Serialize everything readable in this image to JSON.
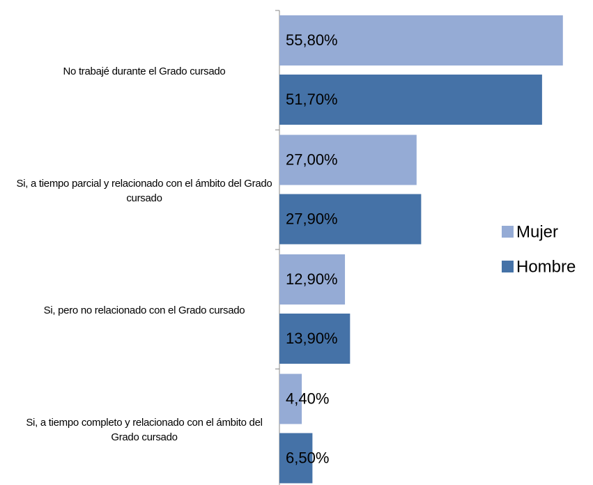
{
  "chart_data": {
    "type": "bar",
    "orientation": "horizontal",
    "categories": [
      "No trabajé  durante el Grado cursado",
      "Si, a tiempo parcial y relacionado con el ámbito del Grado cursado",
      "Si, pero no relacionado con el Grado cursado",
      "Si, a tiempo completo y relacionado con el ámbito del Grado cursado"
    ],
    "series": [
      {
        "name": "Mujer",
        "color": "#95abd5",
        "values": [
          55.8,
          27.0,
          12.9,
          4.4
        ],
        "value_labels": [
          "55,80%",
          "27,00%",
          "12,90%",
          "4,40%"
        ]
      },
      {
        "name": "Hombre",
        "color": "#4572a7",
        "values": [
          51.7,
          27.9,
          13.9,
          6.5
        ],
        "value_labels": [
          "51,70%",
          "27,90%",
          "13,90%",
          "6,50%"
        ]
      }
    ],
    "legend": "right"
  }
}
